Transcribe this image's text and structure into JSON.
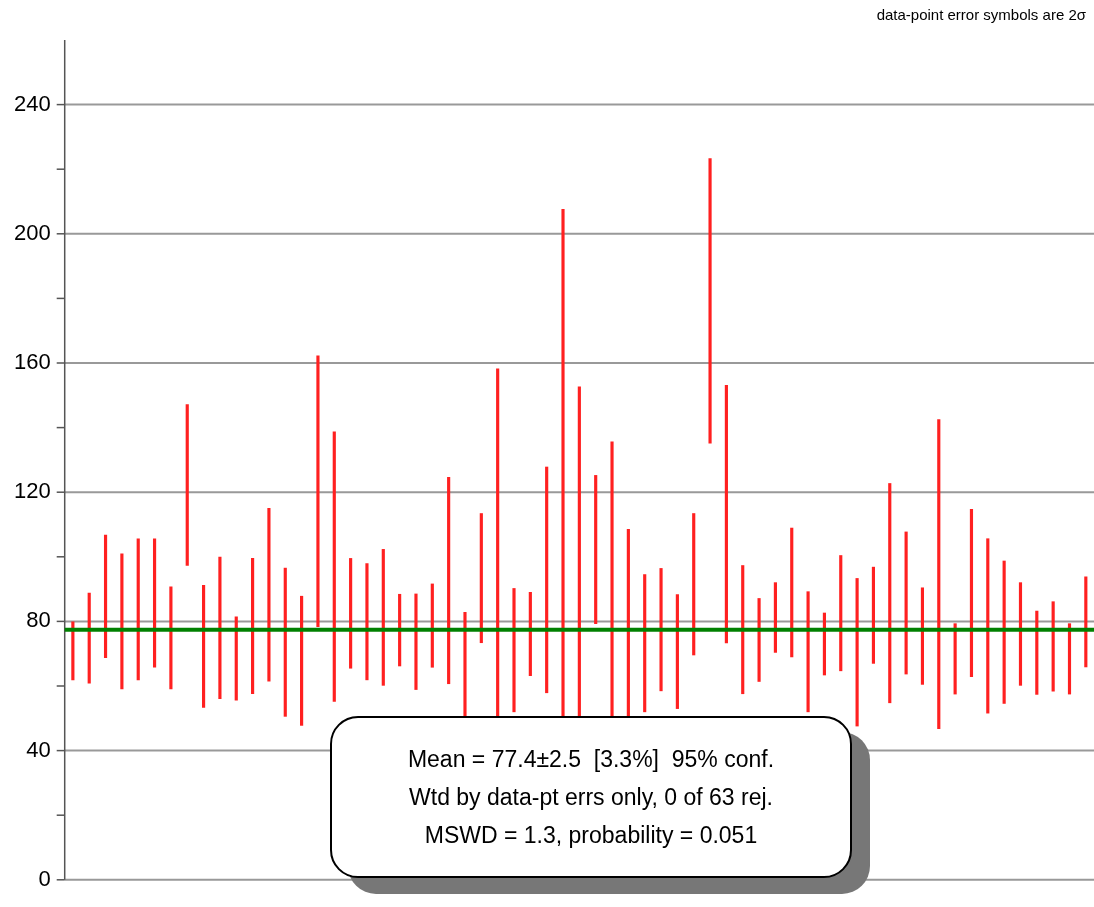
{
  "chart_data": {
    "type": "bar",
    "tick_labels": "y",
    "grid": "y",
    "categories": [
      null,
      null,
      null,
      null,
      null,
      null,
      null,
      null,
      null,
      null,
      null,
      null,
      null,
      null,
      null,
      null,
      null,
      null,
      null,
      null,
      null,
      null,
      null,
      null,
      null,
      null,
      null,
      null,
      null,
      null,
      null,
      null,
      null,
      null,
      null,
      null,
      null,
      null,
      null,
      null,
      null,
      null,
      null,
      null,
      null,
      null,
      null,
      null,
      null,
      null,
      null,
      null,
      null,
      null,
      null,
      null,
      null,
      null,
      null,
      null,
      null,
      null,
      null
    ],
    "series": [
      {
        "color": "#ff2020",
        "base": [
          61.9,
          60.9,
          68.8,
          59.1,
          61.9,
          65.8,
          59.1,
          97.3,
          53.4,
          56.1,
          55.6,
          57.6,
          61.5,
          50.6,
          47.8,
          78.4,
          55.2,
          65.5,
          61.9,
          60.2,
          66.2,
          58.9,
          65.8,
          60.7,
          50,
          73.4,
          36,
          52,
          63.2,
          57.9,
          40,
          45,
          79.3,
          40,
          48,
          52,
          58.5,
          53,
          69.6,
          135.2,
          73.3,
          57.6,
          61.4,
          70.4,
          69.0,
          52,
          63.4,
          64.7,
          47.6,
          67.0,
          54.8,
          63.7,
          60.5,
          46.8,
          57.5,
          62.9,
          51.6,
          54.6,
          60.2,
          57.4,
          58.4,
          57.5,
          65.9
        ],
        "values": [
          18,
          27.9,
          37.9,
          41.8,
          43.7,
          39.8,
          31.6,
          49.8,
          37.8,
          43.8,
          25.8,
          41.9,
          53.5,
          45.9,
          40,
          83.8,
          83.5,
          34,
          36,
          42.1,
          22.2,
          29.6,
          25.8,
          63.9,
          32.8,
          40,
          122.2,
          38.2,
          25.8,
          69.9,
          167.6,
          107.6,
          45.9,
          95.6,
          60.5,
          42.5,
          37.9,
          35.3,
          43.8,
          88.1,
          79.8,
          39.7,
          25.7,
          21.6,
          39.9,
          37.2,
          19.2,
          35.7,
          45.7,
          29.8,
          67.9,
          44,
          29.9,
          95.7,
          21.8,
          51.8,
          54,
          44.1,
          31.8,
          25.8,
          27.7,
          21.8,
          27.9
        ]
      }
    ],
    "ylim": [
      0,
      260
    ],
    "yticks": [
      0,
      {
        "value": 20,
        "label": null
      },
      40,
      {
        "value": 60,
        "label": null
      },
      80,
      {
        "value": 100,
        "label": null
      },
      120,
      {
        "value": 140,
        "label": null
      },
      160,
      {
        "value": 180,
        "label": null
      },
      200,
      {
        "value": 220,
        "label": null
      },
      240
    ],
    "ref_lines": [
      {
        "axis": "y",
        "value": 77.4,
        "color": "#008000"
      }
    ],
    "annotations": [
      "data-point error symbols are 2σ",
      "Mean = 77.4±2.5  [3.3%]  95% conf.",
      "Wtd by data-pt errs only, 0 of 63 rej.",
      "MSWD = 1.3, probability = 0.051"
    ]
  }
}
